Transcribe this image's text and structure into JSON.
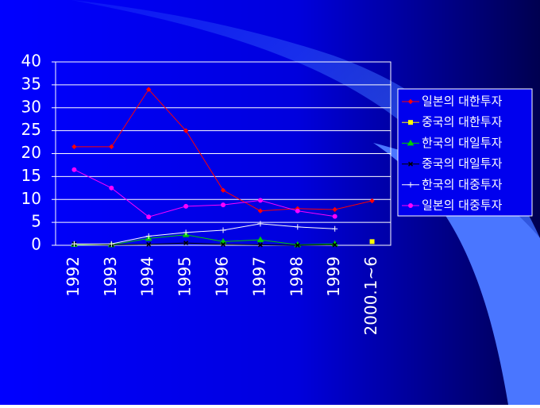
{
  "chart_data": {
    "type": "line",
    "categories": [
      "1992",
      "1993",
      "1994",
      "1995",
      "1996",
      "1997",
      "1998",
      "1999",
      "2000.1~6"
    ],
    "ylim": [
      0,
      40
    ],
    "yticks": [
      0,
      5,
      10,
      15,
      20,
      25,
      30,
      35,
      40
    ],
    "grid": true,
    "legend": "right",
    "series": [
      {
        "name": "일본의 대한투자",
        "color": "#ff0000",
        "marker": "diamond",
        "values": [
          21.5,
          21.5,
          34,
          25,
          12,
          7.5,
          8,
          7.8,
          9.7
        ]
      },
      {
        "name": "중국의 대한투자",
        "color": "#ffff00",
        "marker": "square",
        "values": [
          null,
          null,
          null,
          null,
          null,
          null,
          null,
          null,
          0.8
        ]
      },
      {
        "name": "한국의 대일투자",
        "color": "#00cc00",
        "marker": "triangle",
        "values": [
          0.2,
          0.1,
          1.5,
          2.3,
          0.8,
          1.2,
          0.1,
          0.3,
          null
        ]
      },
      {
        "name": "중국의 대일투자",
        "color": "#000000",
        "marker": "x",
        "values": [
          0.3,
          0.1,
          0.2,
          0.5,
          0.2,
          0.1,
          0,
          0.1,
          null
        ]
      },
      {
        "name": "한국의 대중투자",
        "color": "#ffffff",
        "marker": "star",
        "values": [
          0.3,
          0.3,
          2,
          2.8,
          3.3,
          4.7,
          4,
          3.6,
          null
        ]
      },
      {
        "name": "일본의 대중투자",
        "color": "#ff00ff",
        "marker": "circle",
        "values": [
          16.5,
          12.5,
          6.2,
          8.5,
          8.8,
          9.8,
          7.5,
          6.3,
          null
        ]
      }
    ]
  }
}
